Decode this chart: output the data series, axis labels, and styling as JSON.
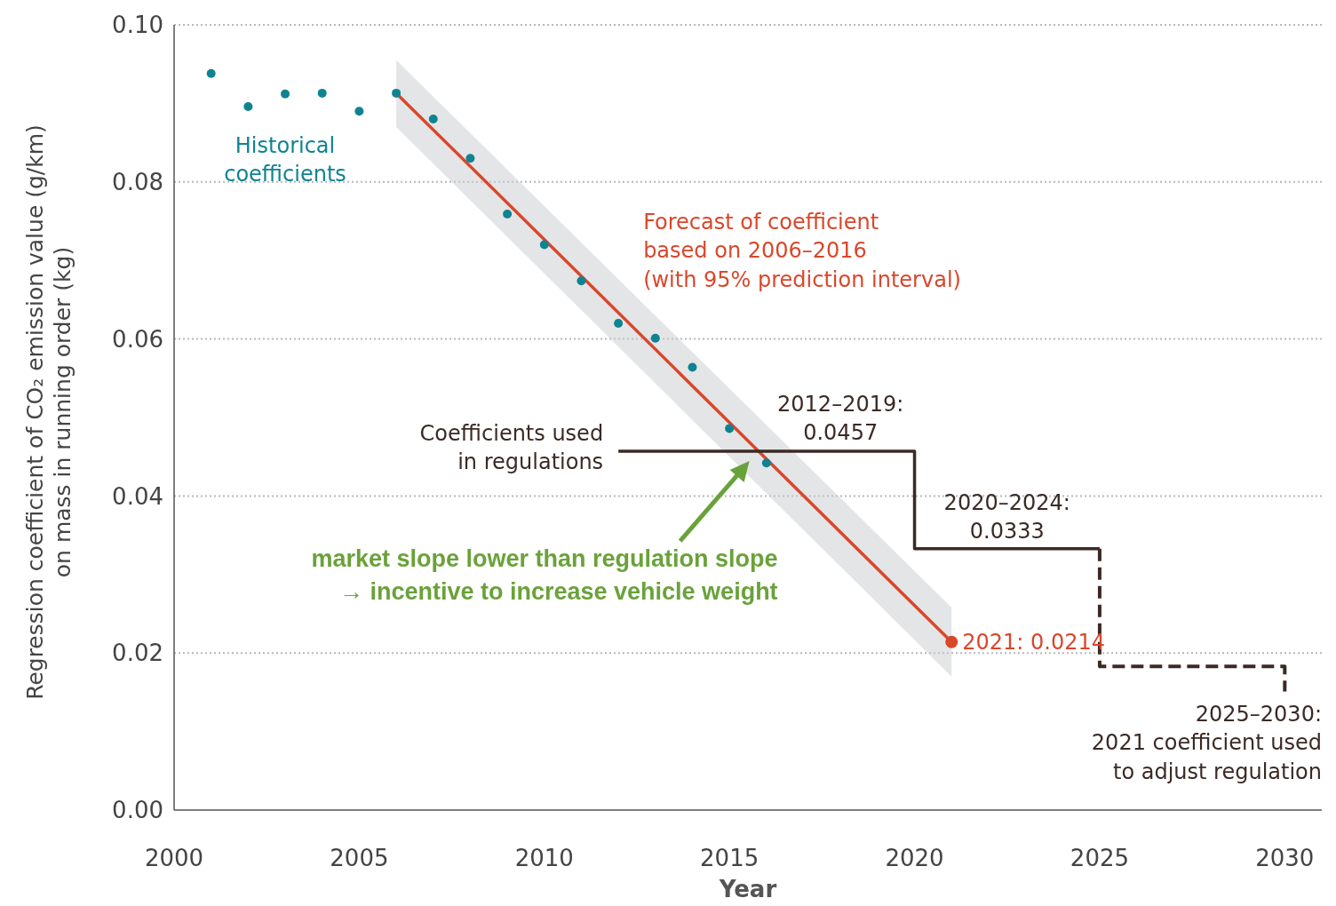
{
  "chart_data": {
    "type": "scatter",
    "xlabel": "Year",
    "ylabel": "Regression coefficient of CO₂ emission value (g/km)\non mass in running order (kg)",
    "xlim": [
      2000,
      2031
    ],
    "xticks": [
      2000,
      2005,
      2010,
      2015,
      2020,
      2025,
      2030
    ],
    "ylim": [
      0,
      0.1
    ],
    "yticks": [
      {
        "value": 0,
        "label": "0.00"
      },
      {
        "value": 0.02,
        "label": "0.02"
      },
      {
        "value": 0.04,
        "label": "0.04"
      },
      {
        "value": 0.06,
        "label": "0.06"
      },
      {
        "value": 0.08,
        "label": "0.08"
      },
      {
        "value": 0.1,
        "label": "0.10"
      }
    ],
    "grid": "y",
    "series": [
      {
        "type": "line",
        "color": "#d9472b",
        "x": [
          2006,
          2021
        ],
        "values": [
          0.0913,
          0.0214
        ],
        "lower": [
          0.087,
          0.017
        ],
        "upper": [
          0.0955,
          0.0258
        ],
        "marker": "none"
      },
      {
        "color": "#0f8391",
        "x": [
          2001,
          2002,
          2003,
          2004,
          2005,
          2006,
          2007,
          2008,
          2009,
          2010,
          2011,
          2012,
          2013,
          2014,
          2015,
          2016
        ],
        "values": [
          0.0938,
          0.0896,
          0.0912,
          0.0913,
          0.089,
          0.0913,
          0.088,
          0.083,
          0.0759,
          0.072,
          0.0674,
          0.062,
          0.0601,
          0.0564,
          0.0486,
          0.0442
        ],
        "marker": "circle"
      },
      {
        "type": "scatter",
        "color": "#d9472b",
        "x": [
          2021
        ],
        "values": [
          0.0214
        ],
        "marker": "circle"
      },
      {
        "type": "line",
        "color": "#3b2a24",
        "x": [
          2012,
          2020,
          2020,
          2025
        ],
        "values": [
          0.0457,
          0.0457,
          0.0333,
          0.0333
        ],
        "line_style": "solid",
        "marker": "none"
      },
      {
        "type": "line",
        "color": "#3b2a24",
        "x": [
          2025,
          2025,
          2030,
          2030
        ],
        "values": [
          0.0333,
          0.0183,
          0.0183,
          0.0151
        ],
        "line_style": "dashed",
        "marker": "none"
      }
    ],
    "annotations": [
      {
        "text": "Historical\ncoefficients",
        "x": 2003,
        "y": 0.0912
      },
      {
        "text": "Forecast of coefficient\nbased on 2006–2016\n(with 95% prediction interval)",
        "x": 2012,
        "y": 0.062
      },
      {
        "text": "Coefficients used\nin regulations",
        "x": 2012,
        "y": 0.0457
      },
      {
        "text": "2012–2019:\n0.0457",
        "x": 2018,
        "y": 0.0457
      },
      {
        "text": "2020–2024:\n0.0333",
        "x": 2022.5,
        "y": 0.0333
      },
      {
        "text": "2021: 0.0214",
        "x": 2021,
        "y": 0.0214
      },
      "2025–2030:\n2021 coefficient used\nto adjust regulation",
      "market slope lower than regulation slope\n→ incentive to increase vehicle weight"
    ]
  }
}
